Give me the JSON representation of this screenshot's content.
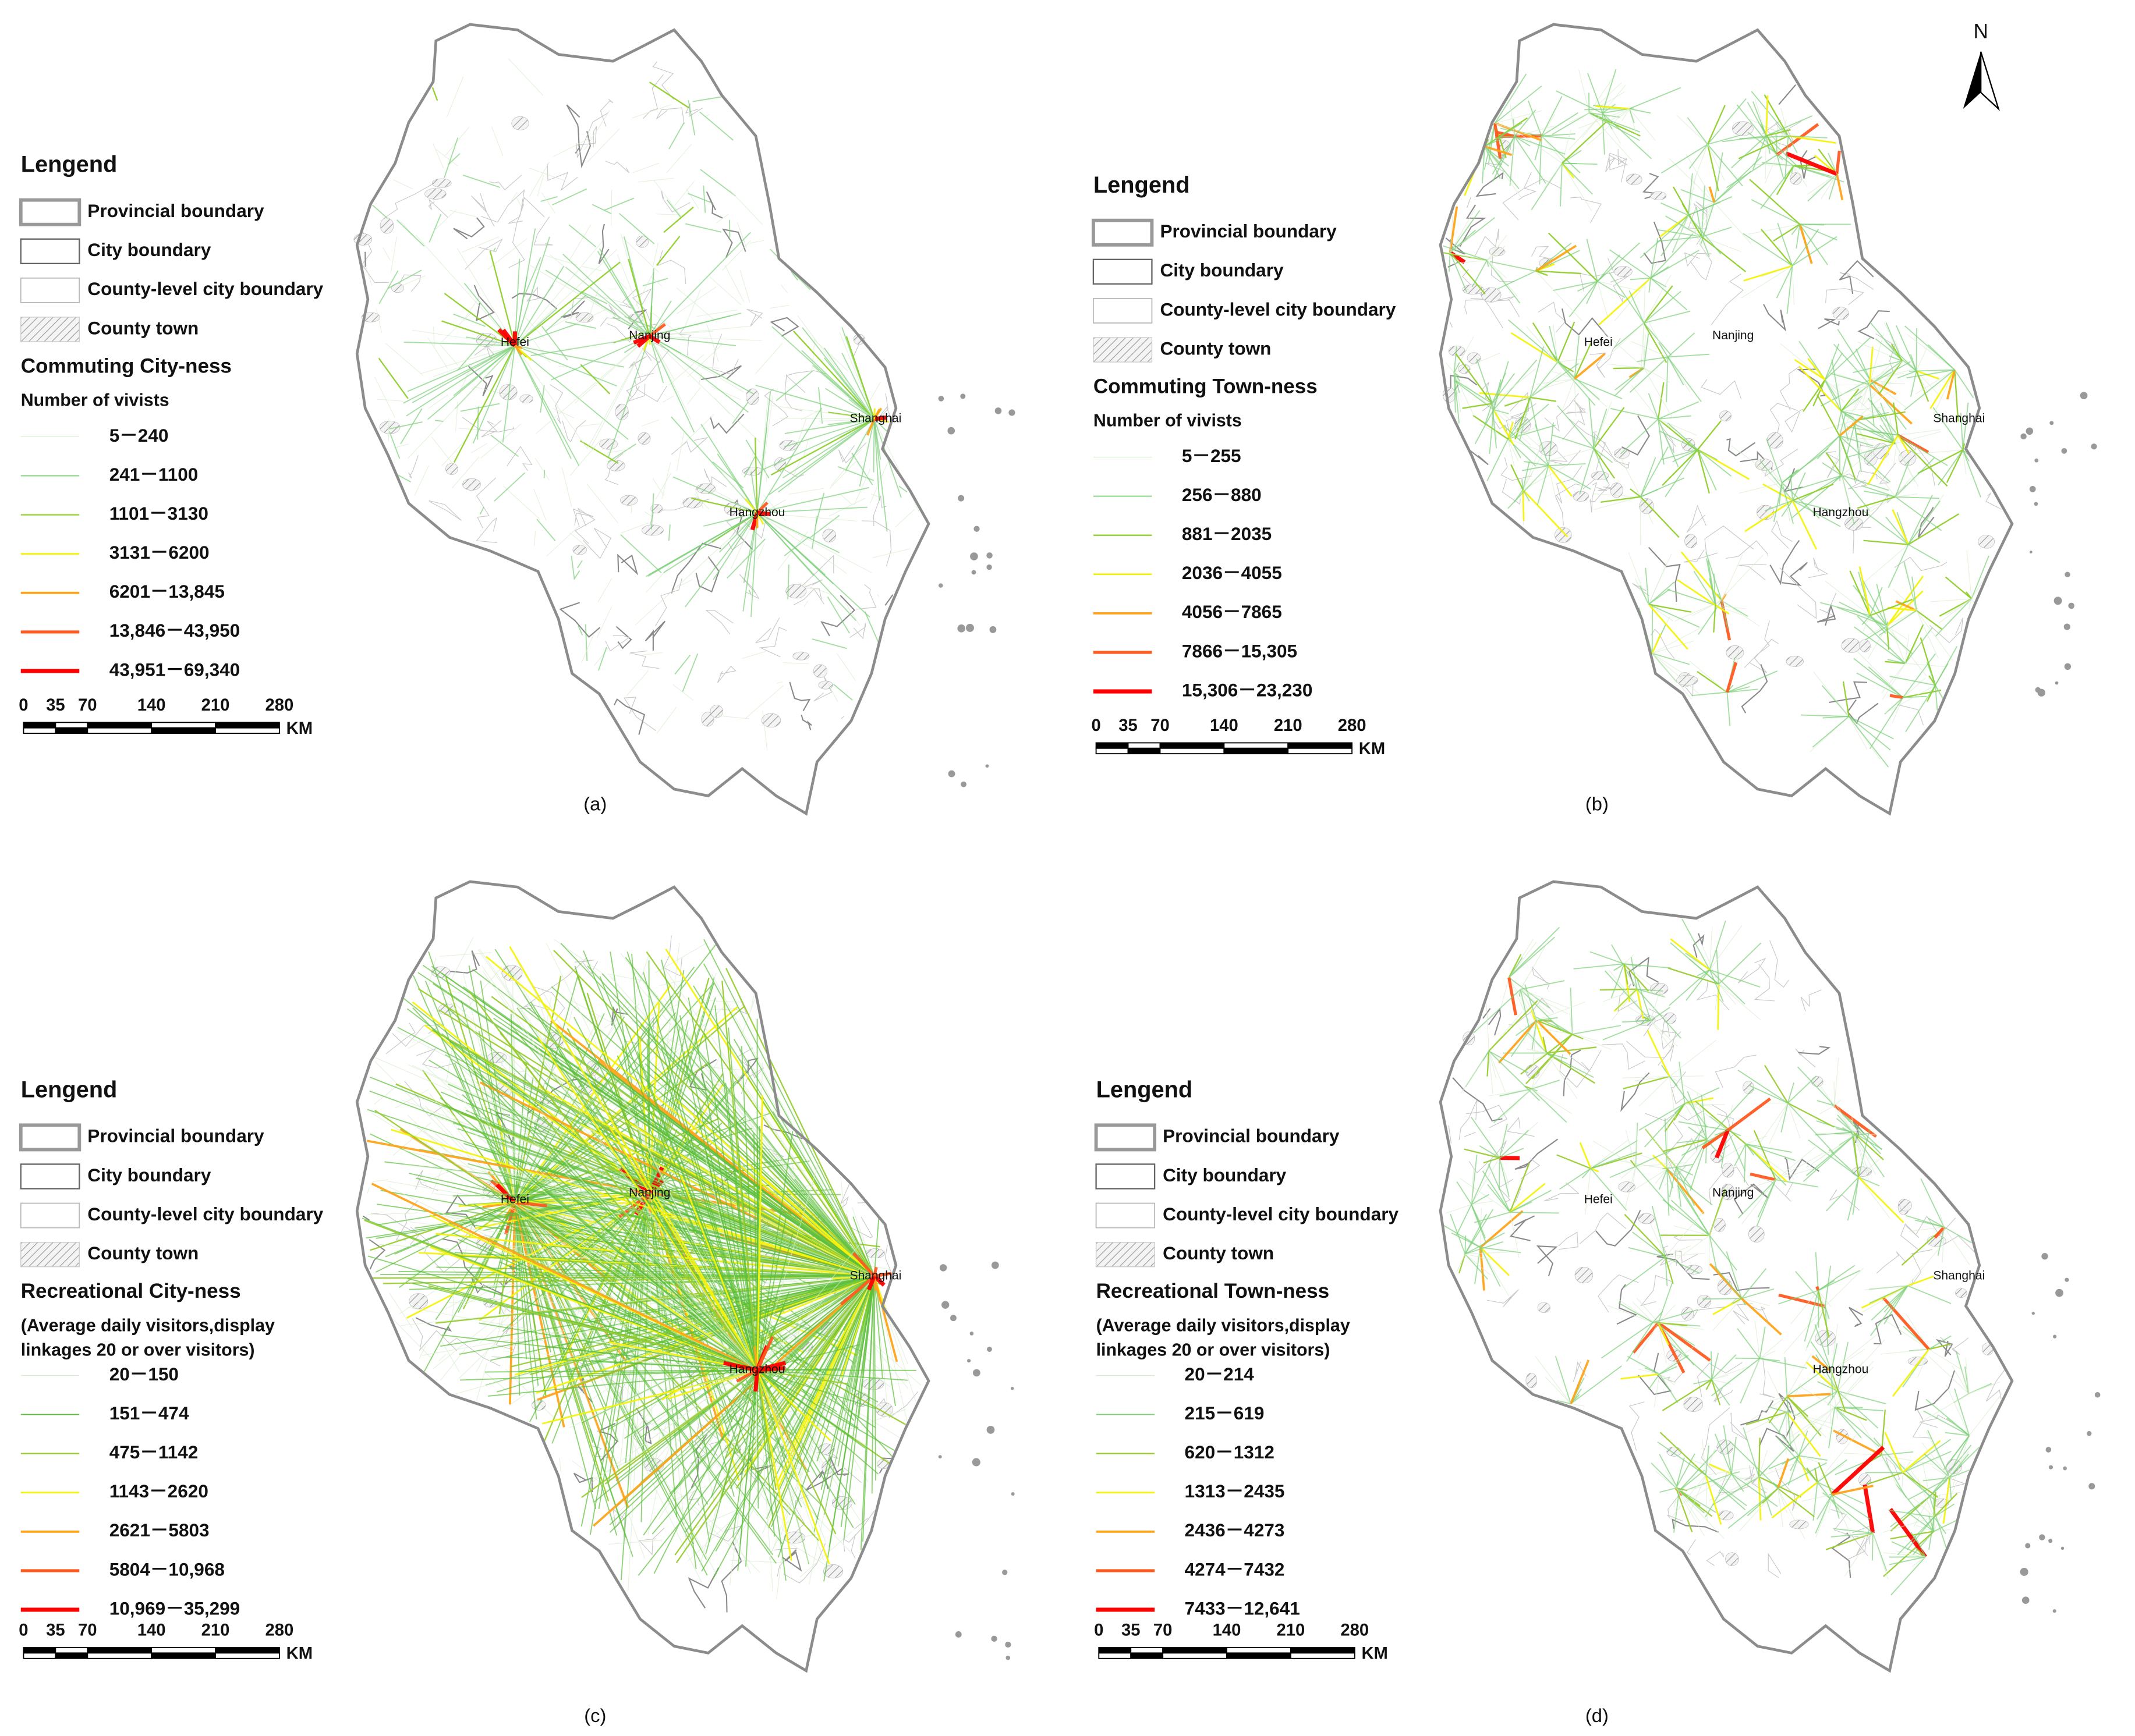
{
  "north": "N",
  "panels": [
    {
      "label": "(a)",
      "legend": {
        "title": "Lengend",
        "items": [
          "Provincial boundary",
          "City boundary",
          "County-level city boundary",
          "County town"
        ],
        "subtitle": "Commuting City-ness",
        "unit": [
          "Number of  vivists"
        ],
        "classes": [
          {
            "label": "5－240",
            "color": "#d8ecd0"
          },
          {
            "label": "241－1100",
            "color": "#7ed07a"
          },
          {
            "label": "1101－3130",
            "color": "#8fcf2a"
          },
          {
            "label": "3131－6200",
            "color": "#f5f20a"
          },
          {
            "label": "6201－13,845",
            "color": "#ffa31a"
          },
          {
            "label": "13,846－43,950",
            "color": "#ff5a1f"
          },
          {
            "label": "43,951－69,340",
            "color": "#ff0000"
          }
        ]
      },
      "cities": [
        "Hefei",
        "Nanjing",
        "Shanghai",
        "Hangzhou"
      ],
      "scale": {
        "ticks": [
          0,
          35,
          70,
          140,
          210,
          280
        ],
        "unit": "KM"
      }
    },
    {
      "label": "(b)",
      "legend": {
        "title": "Lengend",
        "items": [
          "Provincial boundary",
          "City boundary",
          "County-level city boundary",
          "County town"
        ],
        "subtitle": "Commuting Town-ness",
        "unit": [
          "Number of  vivists"
        ],
        "classes": [
          {
            "label": "5－255",
            "color": "#d8ecd0"
          },
          {
            "label": "256－880",
            "color": "#7ed07a"
          },
          {
            "label": "881－2035",
            "color": "#8fcf2a"
          },
          {
            "label": "2036－4055",
            "color": "#f5f20a"
          },
          {
            "label": "4056－7865",
            "color": "#ffa31a"
          },
          {
            "label": "7866－15,305",
            "color": "#ff5a1f"
          },
          {
            "label": "15,306－23,230",
            "color": "#ff0000"
          }
        ]
      },
      "cities": [
        "Hefei",
        "Nanjing",
        "Shanghai",
        "Hangzhou"
      ],
      "scale": {
        "ticks": [
          0,
          35,
          70,
          140,
          210,
          280
        ],
        "unit": "KM"
      }
    },
    {
      "label": "(c)",
      "legend": {
        "title": "Lengend",
        "items": [
          "Provincial boundary",
          "City boundary",
          "County-level city boundary",
          "County town"
        ],
        "subtitle": "Recreational City-ness",
        "unit": [
          "(Average daily visitors,display",
          "linkages 20 or over visitors)"
        ],
        "classes": [
          {
            "label": "20－150",
            "color": "#d8ecd0"
          },
          {
            "label": "151－474",
            "color": "#5cbf3a"
          },
          {
            "label": "475－1142",
            "color": "#9acd32"
          },
          {
            "label": "1143－2620",
            "color": "#f5f20a"
          },
          {
            "label": "2621－5803",
            "color": "#ffa31a"
          },
          {
            "label": "5804－10,968",
            "color": "#ff5a1f"
          },
          {
            "label": "10,969－35,299",
            "color": "#ff0000"
          }
        ]
      },
      "cities": [
        "Hefei",
        "Nanjing",
        "Shanghai",
        "Hangzhou"
      ],
      "scale": {
        "ticks": [
          0,
          35,
          70,
          140,
          210,
          280
        ],
        "unit": "KM"
      }
    },
    {
      "label": "(d)",
      "legend": {
        "title": "Lengend",
        "items": [
          "Provincial boundary",
          "City boundary",
          "County-level city boundary",
          "County town"
        ],
        "subtitle": "Recreational Town-ness",
        "unit": [
          "(Average daily visitors,display",
          " linkages 20 or over visitors)"
        ],
        "classes": [
          {
            "label": "20－214",
            "color": "#d8ecd0"
          },
          {
            "label": "215－619",
            "color": "#7ed07a"
          },
          {
            "label": "620－1312",
            "color": "#9acd32"
          },
          {
            "label": "1313－2435",
            "color": "#f5f20a"
          },
          {
            "label": "2436－4273",
            "color": "#ffa31a"
          },
          {
            "label": "4274－7432",
            "color": "#ff5a1f"
          },
          {
            "label": "7433－12,641",
            "color": "#ff0000"
          }
        ]
      },
      "cities": [
        "Hefei",
        "Nanjing",
        "Shanghai",
        "Hangzhou"
      ],
      "scale": {
        "ticks": [
          0,
          35,
          70,
          140,
          210,
          280
        ],
        "unit": "KM"
      }
    }
  ]
}
